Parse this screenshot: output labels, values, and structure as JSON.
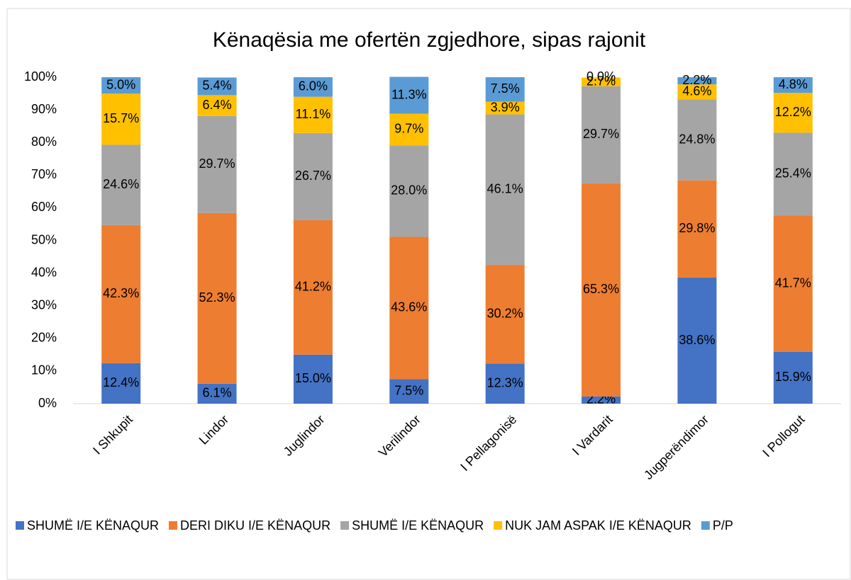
{
  "chart_data": {
    "type": "stacked_bar",
    "title": "Kënaqësia me ofertën zgjedhore, sipas rajonit",
    "categories": [
      "I Shkupit",
      "Lindor",
      "Juglindor",
      "Verilindor",
      "I Pellagonisë",
      "I Vardarit",
      "Jugperëndimor",
      "I Pollogut"
    ],
    "series": [
      {
        "name": "SHUMË I/E KËNAQUR",
        "color": "#4472c4",
        "values": [
          12.4,
          6.1,
          15.0,
          7.5,
          12.3,
          2.2,
          38.6,
          15.9
        ],
        "value_labels": [
          "12.4%",
          "6.1%",
          "15.0%",
          "7.5%",
          "12.3%",
          "2.2%",
          "38.6%",
          "15.9%"
        ]
      },
      {
        "name": "DERI DIKU I/E KËNAQUR",
        "color": "#ed7d31",
        "values": [
          42.3,
          52.3,
          41.2,
          43.6,
          30.2,
          65.3,
          29.8,
          41.7
        ],
        "value_labels": [
          "42.3%",
          "52.3%",
          "41.2%",
          "43.6%",
          "30.2%",
          "65.3%",
          "29.8%",
          "41.7%"
        ]
      },
      {
        "name": "SHUMË I/E KËNAQUR",
        "color": "#a5a5a5",
        "values": [
          24.6,
          29.7,
          26.7,
          28.0,
          46.1,
          29.7,
          24.8,
          25.4
        ],
        "value_labels": [
          "24.6%",
          "29.7%",
          "26.7%",
          "28.0%",
          "46.1%",
          "29.7%",
          "24.8%",
          "25.4%"
        ]
      },
      {
        "name": "NUK JAM ASPAK I/E KËNAQUR",
        "color": "#ffc000",
        "values": [
          15.7,
          6.4,
          11.1,
          9.7,
          3.9,
          2.7,
          4.6,
          12.2
        ],
        "value_labels": [
          "15.7%",
          "6.4%",
          "11.1%",
          "9.7%",
          "3.9%",
          "2.7%",
          "4.6%",
          "12.2%"
        ]
      },
      {
        "name": "P/P",
        "color": "#5b9bd5",
        "values": [
          5.0,
          5.4,
          6.0,
          11.3,
          7.5,
          0.0,
          2.2,
          4.8
        ],
        "value_labels": [
          "5.0%",
          "5.4%",
          "6.0%",
          "11.3%",
          "7.5%",
          "0.0%",
          "2.2%",
          "4.8%"
        ]
      }
    ],
    "ylim": [
      0,
      100
    ],
    "yticks": [
      {
        "value": 0,
        "label": "0%"
      },
      {
        "value": 10,
        "label": "10%"
      },
      {
        "value": 20,
        "label": "20%"
      },
      {
        "value": 30,
        "label": "30%"
      },
      {
        "value": 40,
        "label": "40%"
      },
      {
        "value": 50,
        "label": "50%"
      },
      {
        "value": 60,
        "label": "60%"
      },
      {
        "value": 70,
        "label": "70%"
      },
      {
        "value": 80,
        "label": "80%"
      },
      {
        "value": 90,
        "label": "90%"
      },
      {
        "value": 100,
        "label": "100%"
      }
    ],
    "legend": "bottom"
  }
}
